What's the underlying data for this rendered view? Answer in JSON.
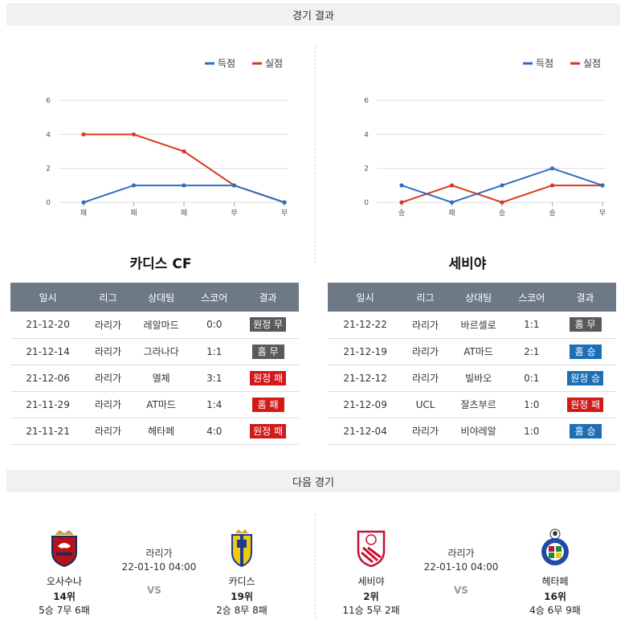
{
  "sections": {
    "results_title": "경기 결과",
    "next_title": "다음 경기"
  },
  "legend": {
    "scored": "득점",
    "conceded": "실점"
  },
  "colors": {
    "scored": "#2f6fbf",
    "conceded": "#d8391e",
    "header": "#6d7a86"
  },
  "chart_data": [
    {
      "type": "line",
      "x": [
        "패",
        "패",
        "패",
        "무",
        "무"
      ],
      "series": [
        {
          "name": "득점",
          "values": [
            0,
            1,
            1,
            1,
            0
          ]
        },
        {
          "name": "실점",
          "values": [
            4,
            4,
            3,
            1,
            0
          ]
        }
      ],
      "yticks": [
        0,
        2,
        4,
        6
      ],
      "ylim": [
        0,
        6
      ],
      "grid": true,
      "legend": "top-right"
    },
    {
      "type": "line",
      "x": [
        "승",
        "패",
        "승",
        "승",
        "무"
      ],
      "series": [
        {
          "name": "득점",
          "values": [
            1,
            0,
            1,
            2,
            1
          ]
        },
        {
          "name": "실점",
          "values": [
            0,
            1,
            0,
            1,
            1
          ]
        }
      ],
      "yticks": [
        0,
        2,
        4,
        6
      ],
      "ylim": [
        0,
        6
      ],
      "grid": true,
      "legend": "top-right"
    }
  ],
  "headers": [
    "일시",
    "리그",
    "상대팀",
    "스코어",
    "결과"
  ],
  "teams": [
    {
      "name": "카디스 CF",
      "rows": [
        {
          "date": "21-12-20",
          "league": "라리가",
          "opponent": "레알마드",
          "score": "0:0",
          "result": "원정 무",
          "type": "draw"
        },
        {
          "date": "21-12-14",
          "league": "라리가",
          "opponent": "그라나다",
          "score": "1:1",
          "result": "홈 무",
          "type": "draw"
        },
        {
          "date": "21-12-06",
          "league": "라리가",
          "opponent": "엘체",
          "score": "3:1",
          "result": "원정 패",
          "type": "loss"
        },
        {
          "date": "21-11-29",
          "league": "라리가",
          "opponent": "AT마드",
          "score": "1:4",
          "result": "홈 패",
          "type": "loss"
        },
        {
          "date": "21-11-21",
          "league": "라리가",
          "opponent": "헤타페",
          "score": "4:0",
          "result": "원정 패",
          "type": "loss"
        }
      ]
    },
    {
      "name": "세비야",
      "rows": [
        {
          "date": "21-12-22",
          "league": "라리가",
          "opponent": "바르셀로",
          "score": "1:1",
          "result": "홈 무",
          "type": "draw"
        },
        {
          "date": "21-12-19",
          "league": "라리가",
          "opponent": "AT마드",
          "score": "2:1",
          "result": "홈 승",
          "type": "win"
        },
        {
          "date": "21-12-12",
          "league": "라리가",
          "opponent": "빌바오",
          "score": "0:1",
          "result": "원정 승",
          "type": "win"
        },
        {
          "date": "21-12-09",
          "league": "UCL",
          "opponent": "잘츠부르",
          "score": "1:0",
          "result": "원정 패",
          "type": "loss"
        },
        {
          "date": "21-12-04",
          "league": "라리가",
          "opponent": "비야레알",
          "score": "1:0",
          "result": "홈 승",
          "type": "win"
        }
      ]
    }
  ],
  "next_matches": [
    {
      "league": "라리가",
      "datetime": "22-01-10 04:00",
      "vs": "VS",
      "home": {
        "name": "오사수나",
        "rank": "14위",
        "record": "5승 7무 6패",
        "logo": "osasuna-crest"
      },
      "away": {
        "name": "카디스",
        "rank": "19위",
        "record": "2승 8무 8패",
        "logo": "cadiz-crest"
      }
    },
    {
      "league": "라리가",
      "datetime": "22-01-10 04:00",
      "vs": "VS",
      "home": {
        "name": "세비야",
        "rank": "2위",
        "record": "11승 5무 2패",
        "logo": "sevilla-crest"
      },
      "away": {
        "name": "헤타페",
        "rank": "16위",
        "record": "4승 6무 9패",
        "logo": "getafe-crest"
      }
    }
  ]
}
